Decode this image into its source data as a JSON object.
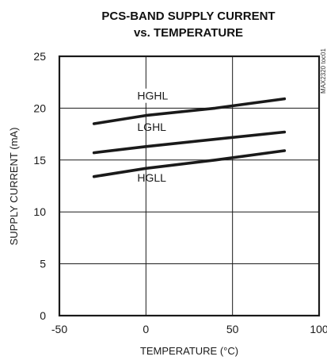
{
  "chart_data": {
    "type": "line",
    "title_line1": "PCS-BAND SUPPLY CURRENT",
    "title_line2": "vs. TEMPERATURE",
    "xlabel": "TEMPERATURE (°C)",
    "ylabel": "SUPPLY CURRENT (mA)",
    "chart_id": "MAX2320 toc01",
    "xlim": [
      -50,
      100
    ],
    "ylim": [
      0,
      25
    ],
    "xticks": [
      -50,
      0,
      50,
      100
    ],
    "yticks": [
      0,
      5,
      10,
      15,
      20,
      25
    ],
    "grid": true,
    "series": [
      {
        "name": "HGHL",
        "x": [
          -30,
          0,
          40,
          80
        ],
        "y": [
          18.5,
          19.3,
          20.0,
          20.9
        ]
      },
      {
        "name": "LGHL",
        "x": [
          -30,
          0,
          40,
          80
        ],
        "y": [
          15.7,
          16.3,
          17.0,
          17.7
        ]
      },
      {
        "name": "HGLL",
        "x": [
          -30,
          0,
          40,
          80
        ],
        "y": [
          13.4,
          14.2,
          15.0,
          15.9
        ]
      }
    ],
    "colors": {
      "line": "#1a1a1a",
      "grid": "#1a1a1a",
      "background": "#ffffff"
    }
  }
}
